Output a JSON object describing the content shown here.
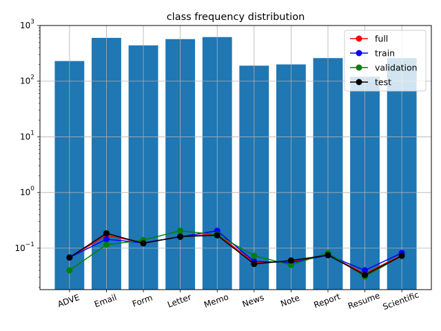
{
  "chart_data": {
    "type": "bar",
    "title": "class frequency distribution",
    "xlabel": "",
    "ylabel": "",
    "yscale": "log",
    "ylim": [
      0.018,
      1000
    ],
    "grid": true,
    "legend_position": "top-right",
    "categories": [
      "ADVE",
      "Email",
      "Form",
      "Letter",
      "Memo",
      "News",
      "Note",
      "Report",
      "Resume",
      "Scientific"
    ],
    "yticks": [
      {
        "value": 0.1,
        "base": "10",
        "exp": "−1"
      },
      {
        "value": 1,
        "base": "10",
        "exp": "0"
      },
      {
        "value": 10,
        "base": "10",
        "exp": "1"
      },
      {
        "value": 100,
        "base": "10",
        "exp": "2"
      },
      {
        "value": 1000,
        "base": "10",
        "exp": "3"
      }
    ],
    "bars": {
      "color": "#1f77b4",
      "values": [
        230,
        600,
        440,
        570,
        620,
        190,
        200,
        260,
        120,
        260
      ]
    },
    "series": [
      {
        "name": "full",
        "color": "#ff0000",
        "values": [
          0.068,
          0.17,
          0.125,
          0.16,
          0.18,
          0.055,
          0.057,
          0.075,
          0.035,
          0.075
        ]
      },
      {
        "name": "train",
        "color": "#0000ff",
        "values": [
          0.068,
          0.145,
          0.125,
          0.16,
          0.205,
          0.058,
          0.055,
          0.075,
          0.04,
          0.082
        ]
      },
      {
        "name": "validation",
        "color": "#008000",
        "values": [
          0.04,
          0.115,
          0.14,
          0.205,
          0.175,
          0.073,
          0.05,
          0.082,
          0.031,
          0.073
        ]
      },
      {
        "name": "test",
        "color": "#000000",
        "values": [
          0.068,
          0.185,
          0.122,
          0.162,
          0.17,
          0.052,
          0.06,
          0.075,
          0.033,
          0.073
        ]
      }
    ]
  }
}
